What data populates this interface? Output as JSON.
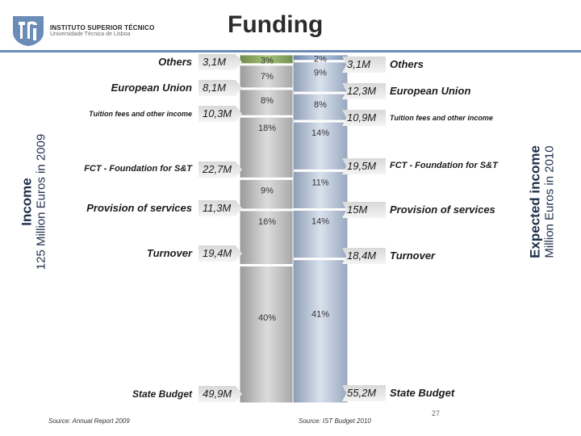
{
  "header": {
    "institution": "INSTITUTO SUPERIOR TÉCNICO",
    "university": "Universidade Técnica de Lisboa",
    "title": "Funding"
  },
  "left_axis": {
    "line1": "Income",
    "line2": "125 Million Euros in 2009"
  },
  "right_axis": {
    "line1": "Expected income",
    "line2": "Million Euros in 2010"
  },
  "chart_data": {
    "type": "bar",
    "categories": [
      "State Budget",
      "Turnover",
      "Provision of services",
      "FCT - Foundation for S&T",
      "Tuition fees and other income",
      "European Union",
      "Others"
    ],
    "series": [
      {
        "values": [
          40,
          16,
          9,
          18,
          8,
          7,
          3
        ],
        "labels": [
          "40%",
          "16%",
          "9%",
          "18%",
          "8%",
          "7%",
          "3%"
        ]
      },
      {
        "values": [
          41,
          14,
          11,
          14,
          8,
          9,
          2
        ],
        "labels": [
          "41%",
          "14%",
          "11%",
          "14%",
          "8%",
          "9%",
          "2%"
        ]
      }
    ],
    "left_names": [
      "State Budget",
      "Turnover",
      "Provision of services",
      "FCT - Foundation for S&T",
      "Tuition fees and other income",
      "European Union",
      "Others"
    ],
    "left_amounts": [
      "49,9M",
      "19,4M",
      "11,3M",
      "22,7M",
      "10,3M",
      "8,1M",
      "3,1M"
    ],
    "right_names": [
      "State Budget",
      "Turnover",
      "Provision of services",
      "FCT - Foundation for S&T",
      "Tuition fees and other income",
      "European Union",
      "Others"
    ],
    "right_amounts": [
      "55,2M",
      "18,4M",
      "15M",
      "19,5M",
      "10,9M",
      "12,3M",
      "3,1M"
    ]
  },
  "footer": {
    "source_left": "Source: Annual Report 2009",
    "source_right": "Source: IST Budget 2010",
    "page_number": "27"
  }
}
